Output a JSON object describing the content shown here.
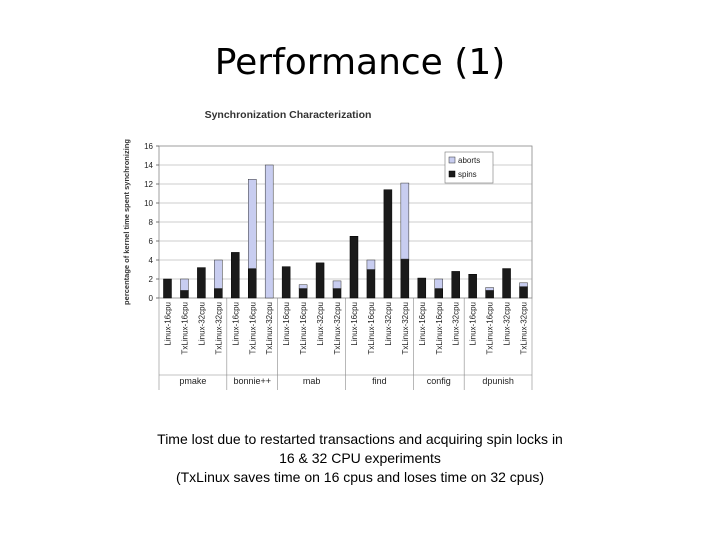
{
  "slide": {
    "title": "Performance (1)",
    "caption_lines": [
      "Time lost due to restarted transactions and acquiring spin locks in",
      "16 & 32 CPU experiments",
      "(TxLinux saves time on 16 cpus and loses time on 32 cpus)"
    ]
  },
  "chart_data": {
    "type": "bar",
    "stacked": true,
    "title": "Synchronization Characterization",
    "ylabel": "percentage of kernel time spent synchronizing",
    "xlabel": "",
    "ylim": [
      0,
      16
    ],
    "yticks": [
      0,
      2,
      4,
      6,
      8,
      10,
      12,
      14,
      16
    ],
    "grid": true,
    "legend_position": "top-right",
    "categories": [
      "Linux-16cpu",
      "TxLinux-16cpu",
      "Linux-32cpu",
      "TxLinux-32cpu",
      "Linux-16cpu",
      "TxLinux-16cpu",
      "TxLinux-32cpu",
      "Linux-16cpu",
      "TxLinux-16cpu",
      "Linux-32cpu",
      "TxLinux-32cpu",
      "Linux-16cpu",
      "TxLinux-16cpu",
      "Linux-32cpu",
      "TxLinux-32cpu",
      "Linux-16cpu",
      "TxLinux-16cpu",
      "Linux-32cpu",
      "Linux-16cpu",
      "TxLinux-16cpu",
      "Linux-32cpu",
      "TxLinux-32cpu"
    ],
    "groups": [
      {
        "name": "pmake",
        "count": 4
      },
      {
        "name": "bonnie++",
        "count": 3
      },
      {
        "name": "mab",
        "count": 4
      },
      {
        "name": "find",
        "count": 4
      },
      {
        "name": "config",
        "count": 3
      },
      {
        "name": "dpunish",
        "count": 4
      }
    ],
    "series": [
      {
        "name": "spins",
        "color": "#1a1a1a",
        "values": [
          2.0,
          0.8,
          3.2,
          1.0,
          4.8,
          3.1,
          0.0,
          3.3,
          1.0,
          3.7,
          1.0,
          6.5,
          3.0,
          11.4,
          4.1,
          2.1,
          1.0,
          2.8,
          2.5,
          0.8,
          3.1,
          1.2
        ]
      },
      {
        "name": "aborts",
        "color": "#c8cdf0",
        "values": [
          0.0,
          1.2,
          0.0,
          3.0,
          0.0,
          9.4,
          14.0,
          0.0,
          0.4,
          0.0,
          0.8,
          0.0,
          1.0,
          0.0,
          8.0,
          0.0,
          1.0,
          0.0,
          0.0,
          0.3,
          0.0,
          0.4
        ]
      }
    ]
  }
}
